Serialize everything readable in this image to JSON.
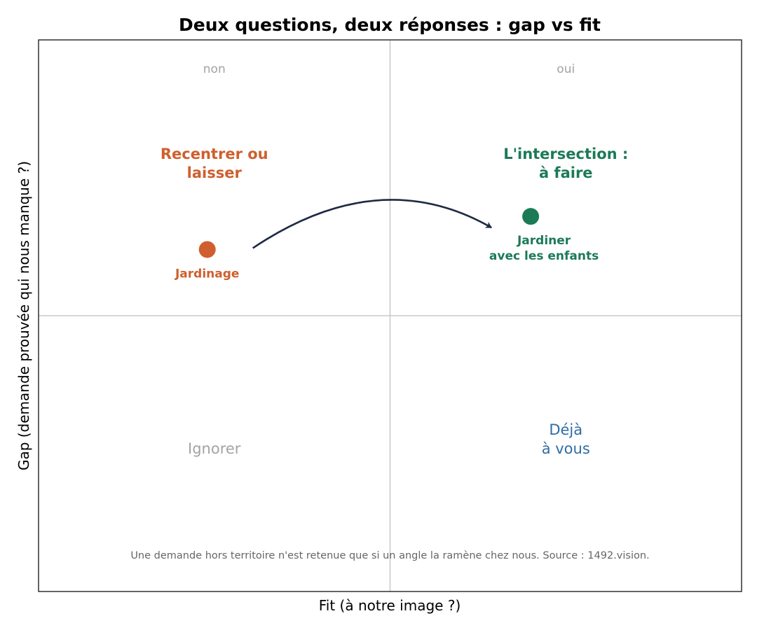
{
  "chart_data": {
    "type": "scatter",
    "title": "Deux questions, deux réponses : gap vs fit",
    "xlabel": "Fit  (à notre image ?)",
    "ylabel": "Gap  (demande prouvée qui nous manque ?)",
    "xlim": [
      0,
      1
    ],
    "ylim": [
      0,
      1
    ],
    "grid": false,
    "dividers": {
      "x": 0.5,
      "y": 0.5
    },
    "column_headers": [
      "non",
      "oui"
    ],
    "quadrants": [
      {
        "id": "top-left",
        "lines": [
          "Recentrer ou",
          "laisser"
        ],
        "color": "#cf5f2e",
        "bold": true
      },
      {
        "id": "top-right",
        "lines": [
          "L'intersection :",
          "à faire"
        ],
        "color": "#1c7a57",
        "bold": true
      },
      {
        "id": "bottom-left",
        "lines": [
          "Ignorer"
        ],
        "color": "#a3a3a3",
        "bold": false
      },
      {
        "id": "bottom-right",
        "lines": [
          "Déjà",
          "à vous"
        ],
        "color": "#2e6da4",
        "bold": false
      }
    ],
    "points": [
      {
        "label": "Jardinage",
        "label_lines": [
          "Jardinage"
        ],
        "x": 0.24,
        "y": 0.62,
        "color": "#cf5f2e"
      },
      {
        "label": "Jardiner avec les enfants",
        "label_lines": [
          "Jardiner",
          "avec les enfants"
        ],
        "x": 0.7,
        "y": 0.68,
        "color": "#1c7a57"
      }
    ],
    "arrow": {
      "from": "Jardinage",
      "to": "Jardiner avec les enfants",
      "color": "#1f2a44"
    },
    "note": "Une demande hors territoire n'est retenue que si un angle la ramène chez nous.  Source : 1492.vision."
  }
}
